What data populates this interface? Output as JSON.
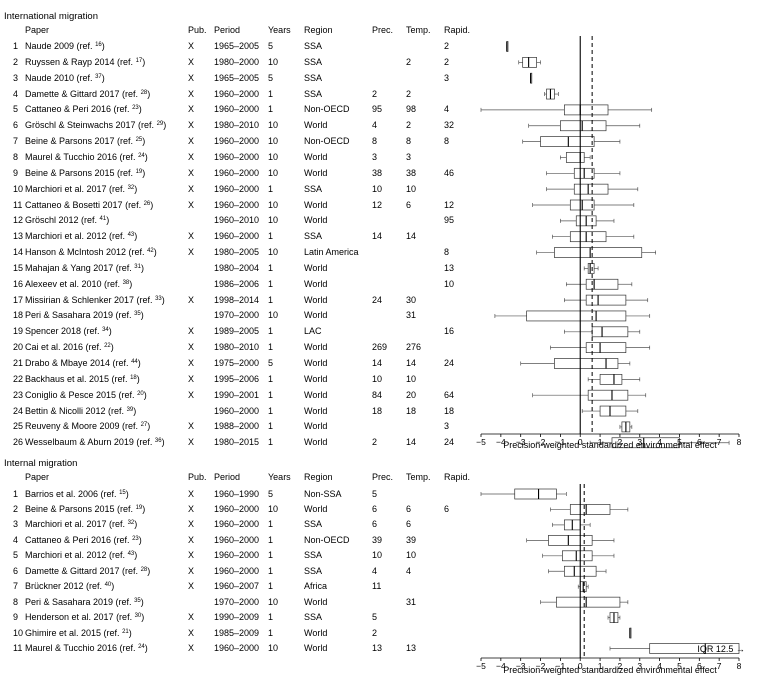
{
  "chart_data": [
    {
      "type": "table",
      "section_title": "International migration",
      "columns": [
        "Paper",
        "Pub.",
        "Period",
        "Years",
        "Region",
        "Prec.",
        "Temp.",
        "Rapid."
      ],
      "xlabel": "Precision-weighted standardized environmental effect",
      "xlim": [
        -5,
        8
      ],
      "xticks": [
        "−5",
        "−4",
        "−3",
        "−2",
        "−1",
        "0",
        "1",
        "2",
        "3",
        "4",
        "5",
        "6",
        "7",
        "8"
      ],
      "reference_line_x": 0.6,
      "rows": [
        {
          "n": "1",
          "paper": "Naude 2009 (ref.",
          "ref": "16",
          "pub": "X",
          "period": "1965–2005",
          "years": "5",
          "region": "SSA",
          "prec": "",
          "temp": "",
          "rapid": "2",
          "box": {
            "wlo": -3.7,
            "q1": -3.7,
            "med": -3.7,
            "q3": -3.7,
            "whi": -3.7
          }
        },
        {
          "n": "2",
          "paper": "Ruyssen & Rayp 2014 (ref.",
          "ref": "17",
          "pub": "X",
          "period": "1980–2000",
          "years": "10",
          "region": "SSA",
          "prec": "",
          "temp": "2",
          "rapid": "2",
          "box": {
            "wlo": -3.1,
            "q1": -2.9,
            "med": -2.6,
            "q3": -2.2,
            "whi": -2.0
          }
        },
        {
          "n": "3",
          "paper": "Naude 2010 (ref.",
          "ref": "37",
          "pub": "X",
          "period": "1965–2005",
          "years": "5",
          "region": "SSA",
          "prec": "",
          "temp": "",
          "rapid": "3",
          "box": {
            "wlo": -2.5,
            "q1": -2.5,
            "med": -2.5,
            "q3": -2.5,
            "whi": -2.5
          }
        },
        {
          "n": "4",
          "paper": "Damette & Gittard 2017 (ref.",
          "ref": "28",
          "pub": "X",
          "period": "1960–2000",
          "years": "1",
          "region": "SSA",
          "prec": "2",
          "temp": "2",
          "rapid": "",
          "box": {
            "wlo": -1.8,
            "q1": -1.7,
            "med": -1.5,
            "q3": -1.3,
            "whi": -1.1
          }
        },
        {
          "n": "5",
          "paper": "Cattaneo & Peri 2016 (ref.",
          "ref": "23",
          "pub": "X",
          "period": "1960–2000",
          "years": "1",
          "region": "Non-OECD",
          "prec": "95",
          "temp": "98",
          "rapid": "4",
          "box": {
            "wlo": -5.0,
            "q1": -0.8,
            "med": 0.0,
            "q3": 1.4,
            "whi": 3.6
          }
        },
        {
          "n": "6",
          "paper": "Gröschl & Steinwachs 2017 (ref.",
          "ref": "29",
          "pub": "X",
          "period": "1980–2010",
          "years": "10",
          "region": "World",
          "prec": "4",
          "temp": "2",
          "rapid": "32",
          "box": {
            "wlo": -2.6,
            "q1": -1.0,
            "med": 0.1,
            "q3": 1.3,
            "whi": 3.0
          }
        },
        {
          "n": "7",
          "paper": "Beine & Parsons 2017 (ref.",
          "ref": "25",
          "pub": "X",
          "period": "1960–2000",
          "years": "10",
          "region": "Non-OECD",
          "prec": "8",
          "temp": "8",
          "rapid": "8",
          "box": {
            "wlo": -2.9,
            "q1": -2.0,
            "med": -0.6,
            "q3": 0.7,
            "whi": 2.0
          }
        },
        {
          "n": "8",
          "paper": "Maurel & Tucchio 2016 (ref.",
          "ref": "24",
          "pub": "X",
          "period": "1960–2000",
          "years": "10",
          "region": "World",
          "prec": "3",
          "temp": "3",
          "rapid": "",
          "box": {
            "wlo": -1.0,
            "q1": -0.7,
            "med": 0.0,
            "q3": 0.2,
            "whi": 0.5
          }
        },
        {
          "n": "9",
          "paper": "Beine & Parsons 2015 (ref.",
          "ref": "19",
          "pub": "X",
          "period": "1960–2000",
          "years": "10",
          "region": "World",
          "prec": "38",
          "temp": "38",
          "rapid": "46",
          "box": {
            "wlo": -1.7,
            "q1": -0.3,
            "med": 0.2,
            "q3": 0.7,
            "whi": 2.0
          }
        },
        {
          "n": "10",
          "paper": "Marchiori et al. 2017 (ref.",
          "ref": "32",
          "pub": "X",
          "period": "1960–2000",
          "years": "1",
          "region": "SSA",
          "prec": "10",
          "temp": "10",
          "rapid": "",
          "box": {
            "wlo": -1.7,
            "q1": -0.3,
            "med": 0.4,
            "q3": 1.4,
            "whi": 2.9
          }
        },
        {
          "n": "11",
          "paper": "Cattaneo & Bosetti 2017 (ref.",
          "ref": "26",
          "pub": "X",
          "period": "1960–2000",
          "years": "10",
          "region": "World",
          "prec": "12",
          "temp": "6",
          "rapid": "12",
          "box": {
            "wlo": -2.4,
            "q1": -0.5,
            "med": 0.1,
            "q3": 0.7,
            "whi": 2.7
          }
        },
        {
          "n": "12",
          "paper": "Gröschl 2012 (ref.",
          "ref": "41",
          "pub": "",
          "period": "1960–2010",
          "years": "10",
          "region": "World",
          "prec": "",
          "temp": "",
          "rapid": "95",
          "box": {
            "wlo": -1.0,
            "q1": -0.2,
            "med": 0.3,
            "q3": 0.8,
            "whi": 1.7
          }
        },
        {
          "n": "13",
          "paper": "Marchiori et al. 2012 (ref.",
          "ref": "43",
          "pub": "X",
          "period": "1960–2000",
          "years": "1",
          "region": "SSA",
          "prec": "14",
          "temp": "14",
          "rapid": "",
          "box": {
            "wlo": -1.4,
            "q1": -0.5,
            "med": 0.3,
            "q3": 1.3,
            "whi": 2.7
          }
        },
        {
          "n": "14",
          "paper": "Hanson & McIntosh 2012 (ref.",
          "ref": "42",
          "pub": "X",
          "period": "1980–2005",
          "years": "10",
          "region": "Latin America",
          "prec": "",
          "temp": "",
          "rapid": "8",
          "box": {
            "wlo": -2.2,
            "q1": -1.3,
            "med": 0.5,
            "q3": 3.1,
            "whi": 3.8
          }
        },
        {
          "n": "15",
          "paper": "Mahajan & Yang 2017 (ref.",
          "ref": "31",
          "pub": "",
          "period": "1980–2004",
          "years": "1",
          "region": "World",
          "prec": "",
          "temp": "",
          "rapid": "13",
          "box": {
            "wlo": 0.2,
            "q1": 0.4,
            "med": 0.5,
            "q3": 0.7,
            "whi": 0.9
          }
        },
        {
          "n": "16",
          "paper": "Alexeev et al. 2010 (ref.",
          "ref": "38",
          "pub": "",
          "period": "1986–2006",
          "years": "1",
          "region": "World",
          "prec": "",
          "temp": "",
          "rapid": "10",
          "box": {
            "wlo": -0.7,
            "q1": 0.3,
            "med": 0.7,
            "q3": 1.9,
            "whi": 2.6
          }
        },
        {
          "n": "17",
          "paper": "Missirian & Schlenker 2017 (ref.",
          "ref": "33",
          "pub": "X",
          "period": "1998–2014",
          "years": "1",
          "region": "World",
          "prec": "24",
          "temp": "30",
          "rapid": "",
          "box": {
            "wlo": -0.8,
            "q1": 0.3,
            "med": 0.9,
            "q3": 2.3,
            "whi": 3.4
          }
        },
        {
          "n": "18",
          "paper": "Peri & Sasahara 2019 (ref.",
          "ref": "35",
          "pub": "",
          "period": "1970–2000",
          "years": "10",
          "region": "World",
          "prec": "",
          "temp": "31",
          "rapid": "",
          "box": {
            "wlo": -4.3,
            "q1": -2.7,
            "med": 0.8,
            "q3": 2.3,
            "whi": 3.5
          }
        },
        {
          "n": "19",
          "paper": "Spencer 2018 (ref.",
          "ref": "34",
          "pub": "X",
          "period": "1989–2005",
          "years": "1",
          "region": "LAC",
          "prec": "",
          "temp": "",
          "rapid": "16",
          "box": {
            "wlo": -0.8,
            "q1": 0.6,
            "med": 1.1,
            "q3": 2.4,
            "whi": 3.0
          }
        },
        {
          "n": "20",
          "paper": "Cai et al. 2016 (ref.",
          "ref": "22",
          "pub": "X",
          "period": "1980–2010",
          "years": "1",
          "region": "World",
          "prec": "269",
          "temp": "276",
          "rapid": "",
          "box": {
            "wlo": -1.5,
            "q1": 0.3,
            "med": 1.0,
            "q3": 2.3,
            "whi": 3.5
          }
        },
        {
          "n": "21",
          "paper": "Drabo & Mbaye 2014 (ref.",
          "ref": "44",
          "pub": "X",
          "period": "1975–2000",
          "years": "5",
          "region": "World",
          "prec": "14",
          "temp": "14",
          "rapid": "24",
          "box": {
            "wlo": -3.0,
            "q1": -1.3,
            "med": 1.3,
            "q3": 1.9,
            "whi": 2.5
          }
        },
        {
          "n": "22",
          "paper": "Backhaus et al. 2015 (ref.",
          "ref": "18",
          "pub": "X",
          "period": "1995–2006",
          "years": "1",
          "region": "World",
          "prec": "10",
          "temp": "10",
          "rapid": "",
          "box": {
            "wlo": 0.4,
            "q1": 1.0,
            "med": 1.7,
            "q3": 2.1,
            "whi": 3.0
          }
        },
        {
          "n": "23",
          "paper": "Coniglio & Pesce 2015 (ref.",
          "ref": "20",
          "pub": "X",
          "period": "1990–2001",
          "years": "1",
          "region": "World",
          "prec": "84",
          "temp": "20",
          "rapid": "64",
          "box": {
            "wlo": -2.4,
            "q1": 0.4,
            "med": 1.6,
            "q3": 2.4,
            "whi": 3.3
          }
        },
        {
          "n": "24",
          "paper": "Bettin & Nicolli 2012 (ref.",
          "ref": "39",
          "pub": "",
          "period": "1960–2000",
          "years": "1",
          "region": "World",
          "prec": "18",
          "temp": "18",
          "rapid": "18",
          "box": {
            "wlo": 0.1,
            "q1": 1.0,
            "med": 1.5,
            "q3": 2.3,
            "whi": 2.9
          }
        },
        {
          "n": "25",
          "paper": "Reuveny & Moore 2009 (ref.",
          "ref": "27",
          "pub": "X",
          "period": "1988–2000",
          "years": "1",
          "region": "World",
          "prec": "",
          "temp": "",
          "rapid": "3",
          "box": {
            "wlo": 2.0,
            "q1": 2.1,
            "med": 2.3,
            "q3": 2.5,
            "whi": 2.6
          }
        },
        {
          "n": "26",
          "paper": "Wesselbaum & Aburn 2019 (ref.",
          "ref": "36",
          "pub": "X",
          "period": "1980–2015",
          "years": "1",
          "region": "World",
          "prec": "2",
          "temp": "14",
          "rapid": "24",
          "box": {
            "wlo": 0.5,
            "q1": 1.6,
            "med": 3.2,
            "q3": 5.0,
            "whi": 7.5
          }
        }
      ]
    },
    {
      "type": "table",
      "section_title": "Internal migration",
      "columns": [
        "Paper",
        "Pub.",
        "Period",
        "Years",
        "Region",
        "Prec.",
        "Temp.",
        "Rapid."
      ],
      "xlabel": "Precision-weighted standardized environmental effect",
      "xlim": [
        -5,
        8
      ],
      "xticks": [
        "−5",
        "−4",
        "−3",
        "−2",
        "−1",
        "0",
        "1",
        "2",
        "3",
        "4",
        "5",
        "6",
        "7",
        "8"
      ],
      "reference_line_x": 0.2,
      "iqr_label": "IQR 12.5 →",
      "rows": [
        {
          "n": "1",
          "paper": "Barrios et al. 2006 (ref.",
          "ref": "15",
          "pub": "X",
          "period": "1960–1990",
          "years": "5",
          "region": "Non-SSA",
          "prec": "5",
          "temp": "",
          "rapid": "",
          "box": {
            "wlo": -5.0,
            "q1": -3.3,
            "med": -2.1,
            "q3": -1.2,
            "whi": -0.7
          }
        },
        {
          "n": "2",
          "paper": "Beine & Parsons 2015 (ref.",
          "ref": "19",
          "pub": "X",
          "period": "1960–2000",
          "years": "10",
          "region": "World",
          "prec": "6",
          "temp": "6",
          "rapid": "6",
          "box": {
            "wlo": -1.5,
            "q1": -0.5,
            "med": 0.3,
            "q3": 1.5,
            "whi": 2.4
          }
        },
        {
          "n": "3",
          "paper": "Marchiori et al. 2017 (ref.",
          "ref": "32",
          "pub": "X",
          "period": "1960–2000",
          "years": "1",
          "region": "SSA",
          "prec": "6",
          "temp": "6",
          "rapid": "",
          "box": {
            "wlo": -1.4,
            "q1": -0.8,
            "med": -0.4,
            "q3": 0.0,
            "whi": 0.5
          }
        },
        {
          "n": "4",
          "paper": "Cattaneo & Peri 2016 (ref.",
          "ref": "23",
          "pub": "X",
          "period": "1960–2000",
          "years": "1",
          "region": "Non-OECD",
          "prec": "39",
          "temp": "39",
          "rapid": "",
          "box": {
            "wlo": -2.7,
            "q1": -1.6,
            "med": -0.6,
            "q3": 0.6,
            "whi": 1.7
          }
        },
        {
          "n": "5",
          "paper": "Marchiori et al. 2012 (ref.",
          "ref": "43",
          "pub": "X",
          "period": "1960–2000",
          "years": "1",
          "region": "SSA",
          "prec": "10",
          "temp": "10",
          "rapid": "",
          "box": {
            "wlo": -1.9,
            "q1": -0.9,
            "med": -0.2,
            "q3": 0.6,
            "whi": 1.7
          }
        },
        {
          "n": "6",
          "paper": "Damette & Gittard 2017 (ref.",
          "ref": "28",
          "pub": "X",
          "period": "1960–2000",
          "years": "1",
          "region": "SSA",
          "prec": "4",
          "temp": "4",
          "rapid": "",
          "box": {
            "wlo": -1.6,
            "q1": -0.8,
            "med": -0.3,
            "q3": 0.8,
            "whi": 1.3
          }
        },
        {
          "n": "7",
          "paper": "Brückner 2012 (ref.",
          "ref": "40",
          "pub": "X",
          "period": "1960–2007",
          "years": "1",
          "region": "Africa",
          "prec": "11",
          "temp": "",
          "rapid": "",
          "box": {
            "wlo": -0.1,
            "q1": 0.0,
            "med": 0.15,
            "q3": 0.3,
            "whi": 0.4
          }
        },
        {
          "n": "8",
          "paper": "Peri & Sasahara 2019 (ref.",
          "ref": "35",
          "pub": "",
          "period": "1970–2000",
          "years": "10",
          "region": "World",
          "prec": "",
          "temp": "31",
          "rapid": "",
          "box": {
            "wlo": -2.0,
            "q1": -1.2,
            "med": 0.3,
            "q3": 2.0,
            "whi": 2.4
          }
        },
        {
          "n": "9",
          "paper": "Henderson et al. 2017 (ref.",
          "ref": "30",
          "pub": "X",
          "period": "1990–2009",
          "years": "1",
          "region": "SSA",
          "prec": "5",
          "temp": "",
          "rapid": "",
          "box": {
            "wlo": 1.4,
            "q1": 1.5,
            "med": 1.7,
            "q3": 1.9,
            "whi": 2.0
          }
        },
        {
          "n": "10",
          "paper": "Ghimire et al. 2015 (ref.",
          "ref": "21",
          "pub": "X",
          "period": "1985–2009",
          "years": "1",
          "region": "World",
          "prec": "2",
          "temp": "",
          "rapid": "",
          "box": {
            "wlo": 2.5,
            "q1": 2.5,
            "med": 2.5,
            "q3": 2.5,
            "whi": 2.5
          }
        },
        {
          "n": "11",
          "paper": "Maurel & Tucchio 2016 (ref.",
          "ref": "24",
          "pub": "X",
          "period": "1960–2000",
          "years": "10",
          "region": "World",
          "prec": "13",
          "temp": "13",
          "rapid": "",
          "box": {
            "wlo": 1.5,
            "q1": 3.5,
            "med": 6.3,
            "q3": 8.0,
            "whi": 8.0
          }
        }
      ]
    }
  ]
}
